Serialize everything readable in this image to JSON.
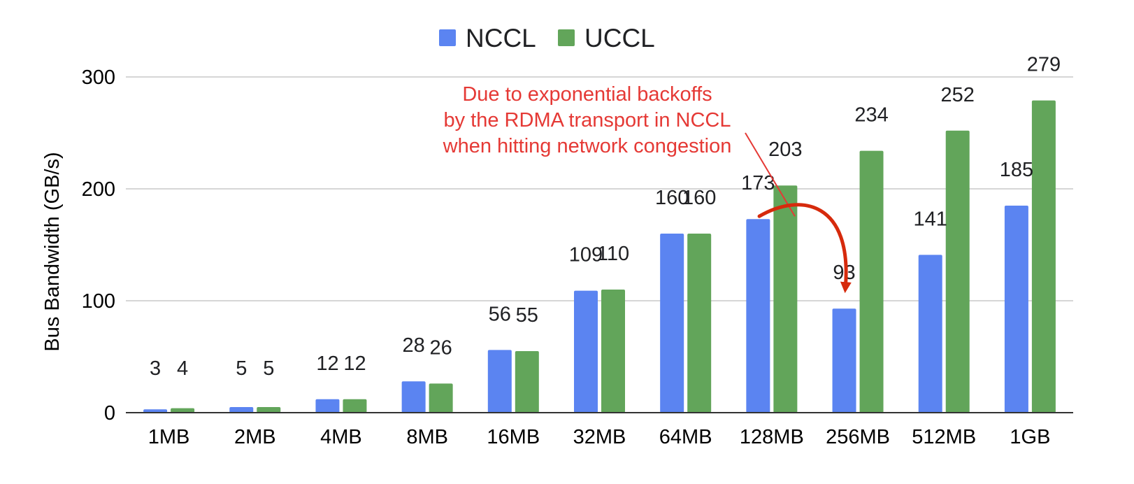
{
  "chart_data": {
    "type": "bar",
    "categories": [
      "1MB",
      "2MB",
      "4MB",
      "8MB",
      "16MB",
      "32MB",
      "64MB",
      "128MB",
      "256MB",
      "512MB",
      "1GB"
    ],
    "series": [
      {
        "name": "NCCL",
        "color": "#5B84F1",
        "values": [
          3,
          5,
          12,
          28,
          56,
          109,
          160,
          173,
          93,
          141,
          185
        ]
      },
      {
        "name": "UCCL",
        "color": "#62A55A",
        "values": [
          4,
          5,
          12,
          26,
          55,
          110,
          160,
          203,
          234,
          252,
          279
        ]
      }
    ],
    "ylabel": "Bus Bandwidth (GB/s)",
    "xlabel": "",
    "ylim": [
      0,
      300
    ],
    "yticks": [
      0,
      100,
      200,
      300
    ],
    "grid": true,
    "legend_position": "top",
    "annotation": {
      "lines": [
        "Due to exponential backoffs",
        "by the RDMA transport in NCCL",
        "when hitting network congestion"
      ],
      "color": "#E53935",
      "arrow_color": "#D62A0C",
      "points_to": {
        "series": "NCCL",
        "category": "256MB",
        "value": 93
      },
      "from": {
        "series": "NCCL",
        "category": "128MB",
        "value": 173
      }
    }
  }
}
